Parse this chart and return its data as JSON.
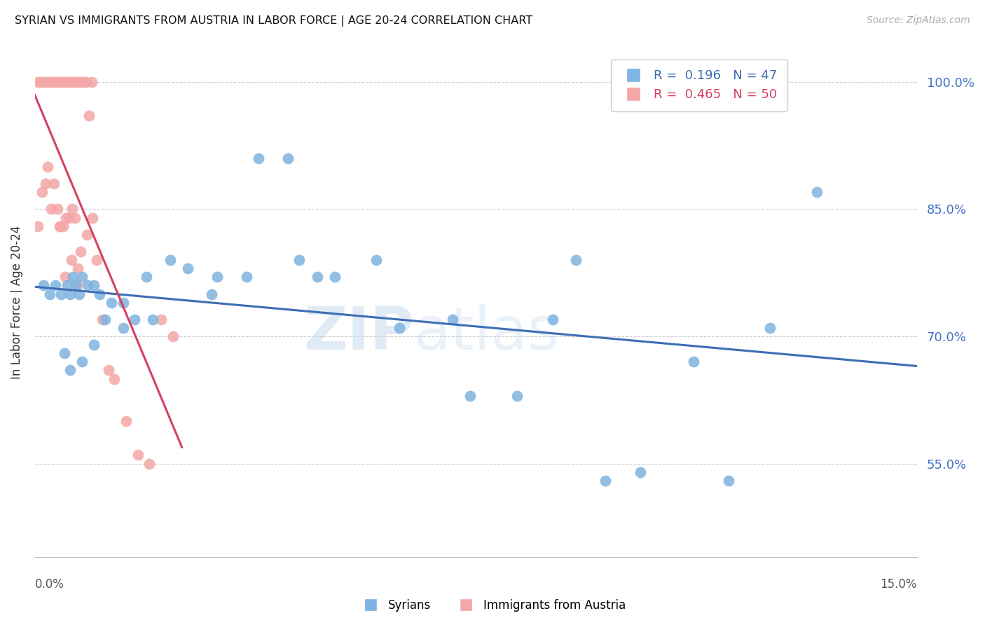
{
  "title": "SYRIAN VS IMMIGRANTS FROM AUSTRIA IN LABOR FORCE | AGE 20-24 CORRELATION CHART",
  "source": "Source: ZipAtlas.com",
  "ylabel": "In Labor Force | Age 20-24",
  "y_ticks": [
    55.0,
    70.0,
    85.0,
    100.0
  ],
  "x_range": [
    0.0,
    15.0
  ],
  "y_range": [
    44.0,
    104.0
  ],
  "legend_blue": {
    "R": 0.196,
    "N": 47,
    "label": "Syrians"
  },
  "legend_pink": {
    "R": 0.465,
    "N": 50,
    "label": "Immigrants from Austria"
  },
  "blue_color": "#7fb3e0",
  "pink_color": "#f4a7a7",
  "blue_line_color": "#3d6eb5",
  "pink_line_color": "#d44060",
  "watermark": "ZIPatlas",
  "syrians_x": [
    0.15,
    0.25,
    0.35,
    0.45,
    0.55,
    0.6,
    0.65,
    0.7,
    0.75,
    0.8,
    0.9,
    1.0,
    1.1,
    1.2,
    1.3,
    1.5,
    1.7,
    1.9,
    2.3,
    2.6,
    3.1,
    3.6,
    3.8,
    4.3,
    4.5,
    4.8,
    5.1,
    5.8,
    6.2,
    7.1,
    7.4,
    8.2,
    8.8,
    9.2,
    9.7,
    10.3,
    11.2,
    11.8,
    12.5,
    13.3,
    0.5,
    0.6,
    0.8,
    1.0,
    1.5,
    2.0,
    3.0
  ],
  "syrians_y": [
    76,
    75,
    76,
    75,
    76,
    75,
    77,
    76,
    75,
    77,
    76,
    76,
    75,
    72,
    74,
    74,
    72,
    77,
    79,
    78,
    77,
    77,
    91,
    91,
    79,
    77,
    77,
    79,
    71,
    72,
    63,
    63,
    72,
    79,
    53,
    54,
    67,
    53,
    71,
    87,
    68,
    66,
    67,
    69,
    71,
    72,
    75
  ],
  "austria_x": [
    0.05,
    0.1,
    0.15,
    0.2,
    0.25,
    0.28,
    0.32,
    0.38,
    0.42,
    0.47,
    0.52,
    0.57,
    0.62,
    0.67,
    0.72,
    0.78,
    0.82,
    0.87,
    0.92,
    0.97,
    0.05,
    0.12,
    0.18,
    0.22,
    0.28,
    0.33,
    0.38,
    0.43,
    0.48,
    0.53,
    0.58,
    0.63,
    0.68,
    0.73,
    0.78,
    0.88,
    0.98,
    1.05,
    1.15,
    1.25,
    1.35,
    1.55,
    1.75,
    1.95,
    2.15,
    2.35,
    0.42,
    0.52,
    0.62,
    0.72
  ],
  "austria_y": [
    100,
    100,
    100,
    100,
    100,
    100,
    100,
    100,
    100,
    100,
    100,
    100,
    100,
    100,
    100,
    100,
    100,
    100,
    96,
    100,
    83,
    87,
    88,
    90,
    85,
    88,
    85,
    83,
    83,
    84,
    84,
    85,
    84,
    78,
    80,
    82,
    84,
    79,
    72,
    66,
    65,
    60,
    56,
    55,
    72,
    70,
    83,
    77,
    79,
    76
  ]
}
